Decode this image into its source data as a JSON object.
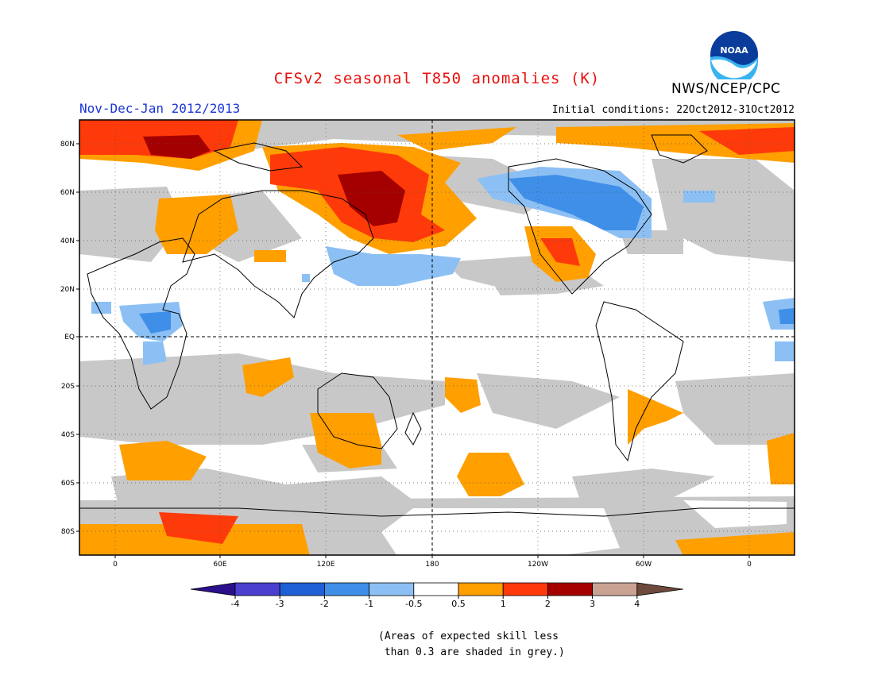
{
  "title": "CFSv2 seasonal T850 anomalies (K)",
  "subtitle": "Nov-Dec-Jan 2012/2013",
  "initial_conditions": "Initial conditions: 22Oct2012-31Oct2012",
  "agency": "NWS/NCEP/CPC",
  "logo_text": "NOAA",
  "colors": {
    "title": "#e8100c",
    "subtitle": "#1b35d8",
    "grey_skill": "#c8c8c8",
    "ocean_land_bg": "#ffffff"
  },
  "map": {
    "lat_labels": [
      "80N",
      "60N",
      "40N",
      "20N",
      "EQ",
      "20S",
      "40S",
      "60S",
      "80S"
    ],
    "lon_labels": [
      "0",
      "60E",
      "120E",
      "180",
      "120W",
      "60W",
      "0"
    ]
  },
  "colorbar": {
    "labels": [
      "-4",
      "-3",
      "-2",
      "-1",
      "-0.5",
      "0.5",
      "1",
      "2",
      "3",
      "4"
    ],
    "colors": [
      "#2b0f8c",
      "#4b3fcf",
      "#1f5fd6",
      "#3f8fe8",
      "#8cc0f4",
      "#ffffff",
      "#ff9f00",
      "#ff3a0a",
      "#a50000",
      "#c9a293",
      "#6e4a3c"
    ]
  },
  "caption": [
    "(Areas of expected skill less",
    " than 0.3 are shaded in grey.)"
  ]
}
